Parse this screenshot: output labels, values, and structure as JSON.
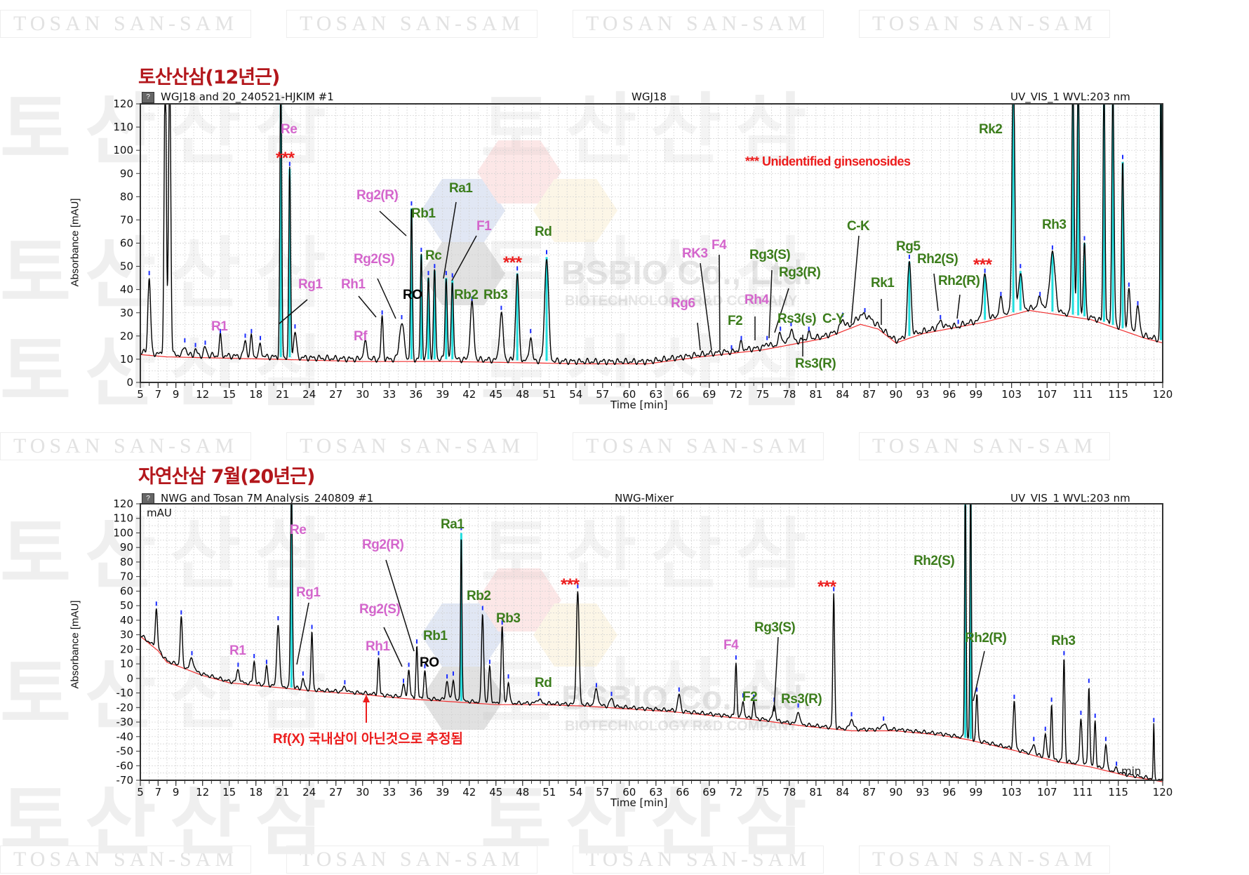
{
  "watermark": {
    "text": "TOSAN SAN-SAM",
    "big_text": "토산산삼",
    "logo_name": "BSBIO Co., Ltd.",
    "logo_sub": "BIOTECHNOLOGY R&D COMPANY"
  },
  "legend_note": "*** Unidentified ginsenosides",
  "chart_data": [
    {
      "type": "line",
      "title": "토산산삼(12년근)",
      "header_left": "WGJ18 and 20_240521-HJKIM #1",
      "header_center": "WGJ18",
      "header_right": "UV_VIS_1 WVL:203 nm",
      "ylabel": "Absorbance [mAU]",
      "xlabel": "Time [min]",
      "xlim": [
        5,
        120
      ],
      "ylim": [
        0,
        120
      ],
      "yticks": [
        0,
        10,
        20,
        30,
        40,
        50,
        60,
        70,
        80,
        90,
        100,
        110,
        120
      ],
      "xticks": [
        5,
        7,
        9,
        12,
        15,
        18,
        21,
        24,
        27,
        30,
        33,
        36,
        39,
        42,
        45,
        48,
        51,
        54,
        57,
        60,
        63,
        66,
        69,
        72,
        75,
        78,
        81,
        84,
        87,
        90,
        93,
        96,
        99,
        103,
        107,
        111,
        115,
        120
      ],
      "baseline": [
        [
          5,
          13
        ],
        [
          8,
          12
        ],
        [
          20,
          11
        ],
        [
          30,
          10
        ],
        [
          40,
          10
        ],
        [
          55,
          9
        ],
        [
          62,
          9
        ],
        [
          68,
          12
        ],
        [
          75,
          15
        ],
        [
          82,
          20
        ],
        [
          86,
          26
        ],
        [
          88,
          24
        ],
        [
          90,
          18
        ],
        [
          93,
          22
        ],
        [
          100,
          27
        ],
        [
          105,
          32
        ],
        [
          112,
          28
        ],
        [
          118,
          20
        ],
        [
          120,
          18
        ]
      ],
      "peaks": [
        [
          6,
          45,
          0.15
        ],
        [
          7.8,
          140,
          0.12
        ],
        [
          8.3,
          140,
          0.12
        ],
        [
          10,
          16,
          0.15
        ],
        [
          11.2,
          14,
          0.15
        ],
        [
          12.3,
          15,
          0.15
        ],
        [
          14,
          20,
          0.12
        ],
        [
          16.8,
          18,
          0.15
        ],
        [
          17.5,
          20,
          0.12
        ],
        [
          18.5,
          17,
          0.12
        ],
        [
          20.8,
          140,
          0.1
        ],
        [
          21.8,
          92,
          0.1
        ],
        [
          22.4,
          22,
          0.15
        ],
        [
          30.3,
          17,
          0.2
        ],
        [
          32.2,
          28,
          0.12
        ],
        [
          34.4,
          26,
          0.25
        ],
        [
          35.5,
          75,
          0.1
        ],
        [
          36.6,
          55,
          0.1
        ],
        [
          37.4,
          45,
          0.12
        ],
        [
          38.1,
          48,
          0.12
        ],
        [
          39.4,
          45,
          0.12
        ],
        [
          40.1,
          44,
          0.12
        ],
        [
          42.3,
          34,
          0.2
        ],
        [
          45.6,
          30,
          0.2
        ],
        [
          47.4,
          47,
          0.18
        ],
        [
          48.9,
          20,
          0.15
        ],
        [
          50.7,
          54,
          0.22
        ],
        [
          71.5,
          13,
          0.2
        ],
        [
          72.6,
          17,
          0.15
        ],
        [
          75.5,
          17,
          0.2
        ],
        [
          77,
          21,
          0.2
        ],
        [
          78.2,
          23,
          0.2
        ],
        [
          80.2,
          21,
          0.2
        ],
        [
          84,
          27,
          0.25
        ],
        [
          86.5,
          29,
          0.8
        ],
        [
          91.5,
          52,
          0.2
        ],
        [
          95,
          26,
          0.3
        ],
        [
          97,
          24,
          0.3
        ],
        [
          100,
          46,
          0.25
        ],
        [
          101.8,
          36,
          0.2
        ],
        [
          103.2,
          140,
          0.15
        ],
        [
          104,
          48,
          0.2
        ],
        [
          106.2,
          36,
          0.3
        ],
        [
          107.6,
          56,
          0.3
        ],
        [
          109.9,
          140,
          0.12
        ],
        [
          110.5,
          140,
          0.12
        ],
        [
          111.2,
          60,
          0.12
        ],
        [
          113.4,
          140,
          0.1
        ],
        [
          114.4,
          128,
          0.12
        ],
        [
          115.5,
          95,
          0.12
        ],
        [
          116.2,
          40,
          0.15
        ],
        [
          117.2,
          32,
          0.2
        ],
        [
          119.8,
          140,
          0.08
        ]
      ],
      "annotations": [
        "Re",
        "***",
        "R1",
        "Rg1",
        "Rh1",
        "Rf",
        "Rg2(R)",
        "Rg2(S)",
        "RO",
        "Rb1",
        "Ra1",
        "Rc",
        "F1",
        "Rd",
        "Rb2",
        "Rb3",
        "***",
        "RK3",
        "F4",
        "Rg6",
        "Rg3(S)",
        "Rg3(R)",
        "Rh4",
        "F2",
        "Rs3(s)",
        "C-Y",
        "Rs3(R)",
        "C-K",
        "Rk1",
        "Rg5",
        "Rh2(S)",
        "Rh2(R)",
        "***",
        "Rk2",
        "Rh3"
      ]
    },
    {
      "type": "line",
      "title": "자연산삼 7월(20년근)",
      "header_left": "NWG and Tosan 7M Analysis_240809 #1",
      "header_center": "NWG-Mixer",
      "header_right": "UV_VIS_1 WVL:203 nm",
      "unit_label": "mAU",
      "ylabel": "Absorbance [mAU]",
      "xlabel": "Time [min]",
      "x_unit_label": "min",
      "xlim": [
        5,
        120
      ],
      "ylim": [
        -70,
        120
      ],
      "yticks": [
        -70,
        -60,
        -50,
        -40,
        -30,
        -20,
        -10,
        0,
        10,
        20,
        30,
        40,
        50,
        60,
        70,
        80,
        90,
        100,
        110,
        120
      ],
      "xticks": [
        5,
        7,
        9,
        12,
        15,
        18,
        21,
        24,
        27,
        30,
        33,
        36,
        39,
        42,
        45,
        48,
        51,
        54,
        57,
        60,
        63,
        66,
        69,
        72,
        75,
        78,
        81,
        84,
        87,
        90,
        93,
        96,
        99,
        103,
        107,
        111,
        115,
        120
      ],
      "baseline": [
        [
          5,
          30
        ],
        [
          6,
          25
        ],
        [
          7,
          20
        ],
        [
          8,
          12
        ],
        [
          9,
          10
        ],
        [
          12,
          3
        ],
        [
          15,
          -2
        ],
        [
          20,
          -5
        ],
        [
          25,
          -8
        ],
        [
          30,
          -10
        ],
        [
          35,
          -13
        ],
        [
          40,
          -15
        ],
        [
          45,
          -17
        ],
        [
          50,
          -17
        ],
        [
          55,
          -18
        ],
        [
          60,
          -20
        ],
        [
          65,
          -22
        ],
        [
          70,
          -25
        ],
        [
          75,
          -28
        ],
        [
          80,
          -32
        ],
        [
          85,
          -35
        ],
        [
          90,
          -35
        ],
        [
          95,
          -38
        ],
        [
          98,
          -41
        ],
        [
          103,
          -48
        ],
        [
          108,
          -56
        ],
        [
          112,
          -60
        ],
        [
          116,
          -66
        ],
        [
          120,
          -70
        ]
      ],
      "peaks": [
        [
          6.8,
          48,
          0.12
        ],
        [
          9.6,
          42,
          0.12
        ],
        [
          10.8,
          14,
          0.2
        ],
        [
          16,
          6,
          0.15
        ],
        [
          17.8,
          12,
          0.12
        ],
        [
          19.2,
          8,
          0.12
        ],
        [
          20.5,
          38,
          0.15
        ],
        [
          22,
          140,
          0.1
        ],
        [
          23.3,
          0,
          0.12
        ],
        [
          24.3,
          32,
          0.1
        ],
        [
          28,
          -6,
          0.2
        ],
        [
          31.8,
          14,
          0.1
        ],
        [
          34.6,
          -5,
          0.15
        ],
        [
          35.2,
          6,
          0.12
        ],
        [
          36.1,
          22,
          0.1
        ],
        [
          37,
          5,
          0.12
        ],
        [
          39.5,
          -2,
          0.15
        ],
        [
          40.2,
          0,
          0.12
        ],
        [
          41.1,
          100,
          0.08
        ],
        [
          43.5,
          45,
          0.12
        ],
        [
          44.3,
          8,
          0.12
        ],
        [
          45.7,
          35,
          0.12
        ],
        [
          46.4,
          -2,
          0.12
        ],
        [
          49.8,
          -14,
          0.2
        ],
        [
          54.2,
          60,
          0.15
        ],
        [
          56.3,
          -8,
          0.2
        ],
        [
          58,
          -14,
          0.2
        ],
        [
          65.6,
          -11,
          0.15
        ],
        [
          72,
          11,
          0.1
        ],
        [
          72.8,
          -15,
          0.12
        ],
        [
          74,
          -16,
          0.12
        ],
        [
          76.3,
          -18,
          0.15
        ],
        [
          79,
          -22,
          0.15
        ],
        [
          83,
          58,
          0.1
        ],
        [
          85,
          -28,
          0.2
        ],
        [
          88.6,
          -31,
          0.2
        ],
        [
          97.8,
          140,
          0.08
        ],
        [
          98.4,
          140,
          0.08
        ],
        [
          99.1,
          -11,
          0.1
        ],
        [
          103.3,
          -16,
          0.12
        ],
        [
          105.5,
          -45,
          0.15
        ],
        [
          106.8,
          -38,
          0.12
        ],
        [
          107.5,
          -18,
          0.1
        ],
        [
          108.9,
          14,
          0.1
        ],
        [
          110.8,
          -27,
          0.12
        ],
        [
          111.7,
          -5,
          0.1
        ],
        [
          112.4,
          -29,
          0.1
        ],
        [
          113.6,
          -45,
          0.12
        ],
        [
          114.8,
          -62,
          0.15
        ],
        [
          119,
          -32,
          0.06
        ]
      ],
      "annotations": [
        "Re",
        "Rg1",
        "R1",
        "Rg2(R)",
        "Rg2(S)",
        "Rh1",
        "RO",
        "Ra1",
        "Rb1",
        "Rb2",
        "Rb3",
        "Rd",
        "***",
        "F4",
        "F2",
        "Rg3(S)",
        "Rs3(R)",
        "***",
        "Rh2(S)",
        "Rh2(R)",
        "Rh3"
      ],
      "note": "Rf(X) 국내삼이 아닌것으로 추정됨"
    }
  ]
}
